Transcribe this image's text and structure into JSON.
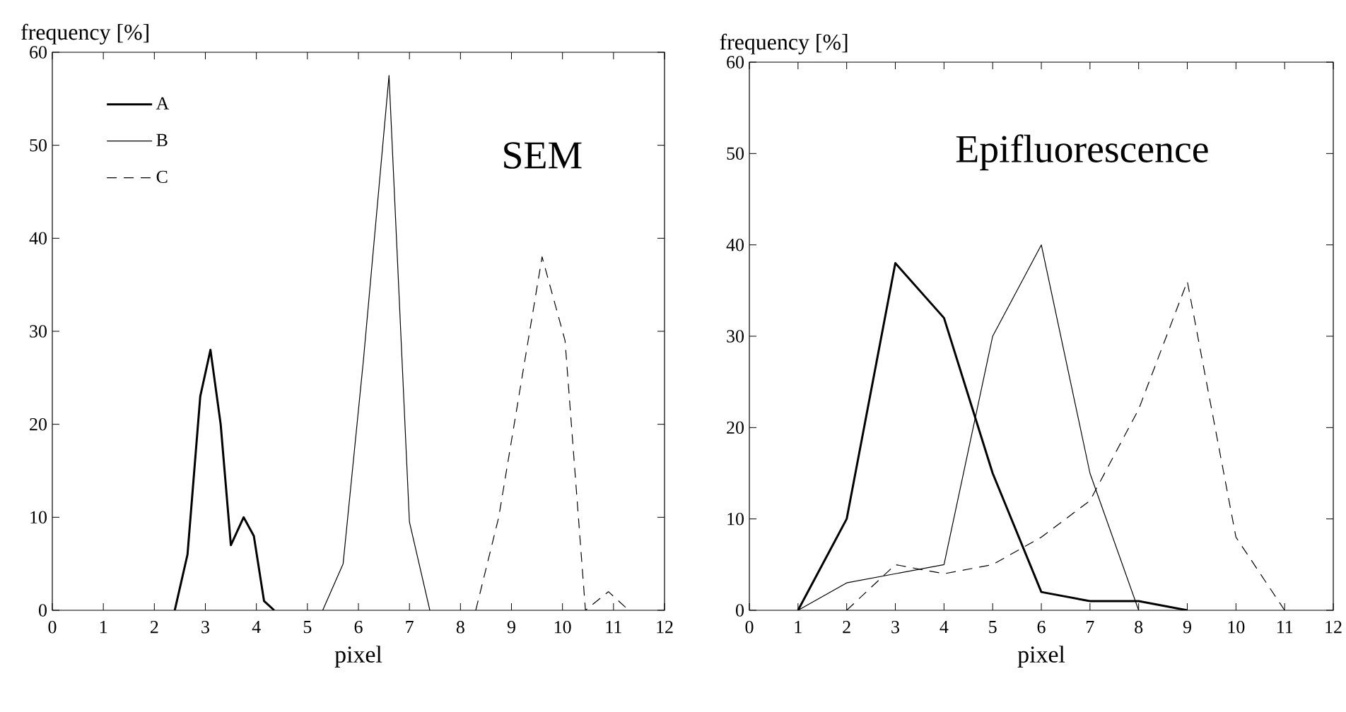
{
  "chart_data": [
    {
      "type": "line",
      "title": "SEM",
      "xlabel": "pixel",
      "ylabel": "frequency [%]",
      "xlim": [
        0,
        12
      ],
      "xticks": [
        0,
        1,
        2,
        3,
        4,
        5,
        6,
        7,
        8,
        9,
        10,
        11,
        12
      ],
      "ylim": [
        0,
        60
      ],
      "yticks": [
        0,
        10,
        20,
        30,
        40,
        50,
        60
      ],
      "legend": "top left",
      "series": [
        {
          "name": "A",
          "color": "#000000",
          "line_style": "solid",
          "x": [
            2.4,
            2.65,
            2.9,
            3.1,
            3.3,
            3.5,
            3.75,
            3.95,
            4.15,
            4.35
          ],
          "values": [
            0,
            6,
            23,
            28,
            20,
            7,
            10,
            8,
            1,
            0
          ]
        },
        {
          "name": "B",
          "color": "#000000",
          "line_style": "solid",
          "x": [
            5.3,
            5.7,
            6.1,
            6.6,
            7.0,
            7.4
          ],
          "values": [
            0,
            5,
            27,
            57.5,
            9.5,
            0
          ]
        },
        {
          "name": "C",
          "color": "#000000",
          "line_style": "dashed",
          "x": [
            8.3,
            8.75,
            9.6,
            10.05,
            10.45,
            10.9,
            11.3
          ],
          "values": [
            0,
            10,
            38,
            29,
            0,
            2,
            0
          ]
        }
      ]
    },
    {
      "type": "line",
      "title": "Epifluorescence",
      "xlabel": "pixel",
      "ylabel": "frequency [%]",
      "xlim": [
        0,
        12
      ],
      "xticks": [
        0,
        1,
        2,
        3,
        4,
        5,
        6,
        7,
        8,
        9,
        10,
        11,
        12
      ],
      "ylim": [
        0,
        60
      ],
      "yticks": [
        0,
        10,
        20,
        30,
        40,
        50,
        60
      ],
      "series": [
        {
          "color": "#000000",
          "line_style": "solid",
          "x": [
            1,
            2,
            3,
            4,
            5,
            6,
            7,
            8,
            9
          ],
          "values": [
            0,
            10,
            38,
            32,
            15,
            2,
            1,
            1,
            0
          ]
        },
        {
          "color": "#000000",
          "line_style": "solid",
          "x": [
            1,
            2,
            3,
            4,
            5,
            6,
            7,
            8
          ],
          "values": [
            0,
            3,
            4,
            5,
            30,
            40,
            15,
            0
          ]
        },
        {
          "color": "#000000",
          "line_style": "dashed",
          "x": [
            2,
            3,
            4,
            5,
            6,
            7,
            8,
            9,
            10,
            11
          ],
          "values": [
            0,
            5,
            4,
            5,
            8,
            12,
            22,
            36,
            8,
            0
          ]
        }
      ]
    }
  ]
}
